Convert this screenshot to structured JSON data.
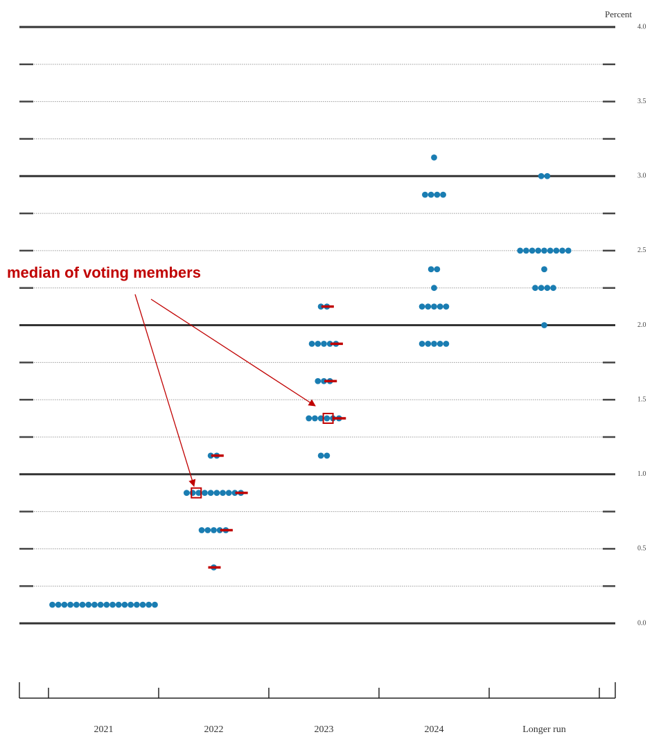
{
  "chart_data": {
    "type": "dot",
    "y_axis_label": "Percent",
    "annotation": "median of voting members",
    "categories": [
      "2021",
      "2022",
      "2023",
      "2024",
      "Longer run"
    ],
    "ylim": [
      0,
      4
    ],
    "yticks": [
      {
        "value": 0,
        "label": "0.0"
      },
      {
        "value": 0.5,
        "label": "0.5"
      },
      {
        "value": 1,
        "label": "1.0"
      },
      {
        "value": 1.5,
        "label": "1.5"
      },
      {
        "value": 2,
        "label": "2.0"
      },
      {
        "value": 2.5,
        "label": "2.5"
      },
      {
        "value": 3,
        "label": "3.0"
      },
      {
        "value": 3.5,
        "label": "3.5"
      },
      {
        "value": 4,
        "label": "4.0"
      }
    ],
    "minor_yticks": [
      0.25,
      0.75,
      1.25,
      1.75,
      2.25,
      2.75,
      3.25,
      3.75
    ],
    "color": "#1a7db2",
    "highlight_color": "#c00000",
    "dots": [
      [
        {
          "value": 0.125,
          "count": 18
        }
      ],
      [
        {
          "value": 1.125,
          "count": 2
        },
        {
          "value": 0.875,
          "count": 10
        },
        {
          "value": 0.625,
          "count": 5
        },
        {
          "value": 0.375,
          "count": 1
        }
      ],
      [
        {
          "value": 2.125,
          "count": 2
        },
        {
          "value": 1.875,
          "count": 5
        },
        {
          "value": 1.625,
          "count": 3
        },
        {
          "value": 1.375,
          "count": 6
        },
        {
          "value": 1.125,
          "count": 2
        }
      ],
      [
        {
          "value": 3.125,
          "count": 1
        },
        {
          "value": 2.875,
          "count": 4
        },
        {
          "value": 2.375,
          "count": 2
        },
        {
          "value": 2.25,
          "count": 1
        },
        {
          "value": 2.125,
          "count": 5
        },
        {
          "value": 1.875,
          "count": 5
        }
      ],
      [
        {
          "value": 3,
          "count": 2
        },
        {
          "value": 2.5,
          "count": 9
        },
        {
          "value": 2.375,
          "count": 1
        },
        {
          "value": 2.25,
          "count": 4
        },
        {
          "value": 2,
          "count": 1
        }
      ]
    ],
    "voting_levels": [
      [],
      [
        1.125,
        0.875,
        0.625,
        0.375
      ],
      [
        2.125,
        1.875,
        1.625,
        1.375
      ],
      [],
      []
    ],
    "voting_medians": [
      null,
      0.875,
      1.375,
      null,
      null
    ]
  }
}
